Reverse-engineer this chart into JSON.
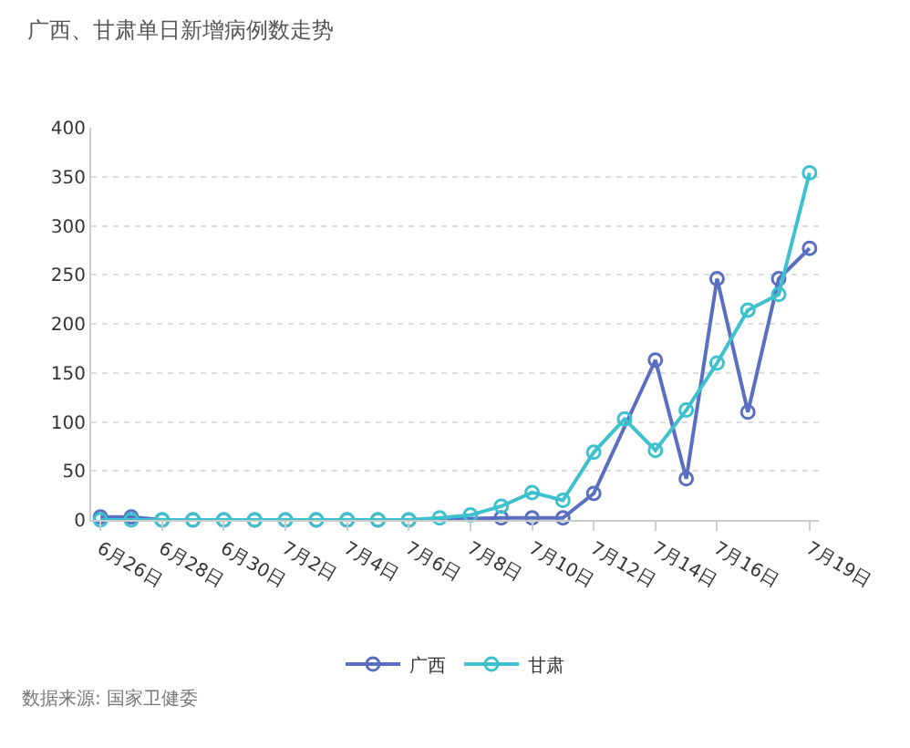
{
  "chart_data": {
    "type": "line",
    "title": "广西、甘肃单日新增病例数走势",
    "categories": [
      "6月26日",
      null,
      "6月28日",
      null,
      "6月30日",
      null,
      "7月2日",
      null,
      "7月4日",
      null,
      "7月6日",
      null,
      "7月8日",
      null,
      "7月10日",
      null,
      "7月12日",
      null,
      "7月14日",
      null,
      "7月16日",
      null,
      null,
      "7月19日"
    ],
    "series": [
      {
        "name": "广西",
        "color": "#5a6fc0",
        "values": [
          3,
          3,
          0,
          0,
          0,
          0,
          0,
          0,
          0,
          0,
          0,
          null,
          null,
          2,
          2,
          2,
          27,
          null,
          163,
          42,
          246,
          110,
          246,
          277
        ]
      },
      {
        "name": "甘肃",
        "color": "#3ec1cf",
        "values": [
          0,
          0,
          0,
          0,
          0,
          0,
          0,
          0,
          0,
          0,
          0,
          2,
          5,
          14,
          28,
          20,
          69,
          103,
          71,
          112,
          160,
          214,
          230,
          354
        ]
      }
    ],
    "ylim": [
      0,
      400
    ],
    "yticks": [
      0,
      50,
      100,
      150,
      200,
      250,
      300,
      350,
      400
    ],
    "grid": "y",
    "legend": "bottom",
    "marker": "circle",
    "line_style": "solid",
    "annotations": [
      "数据来源: 国家卫健委"
    ]
  }
}
